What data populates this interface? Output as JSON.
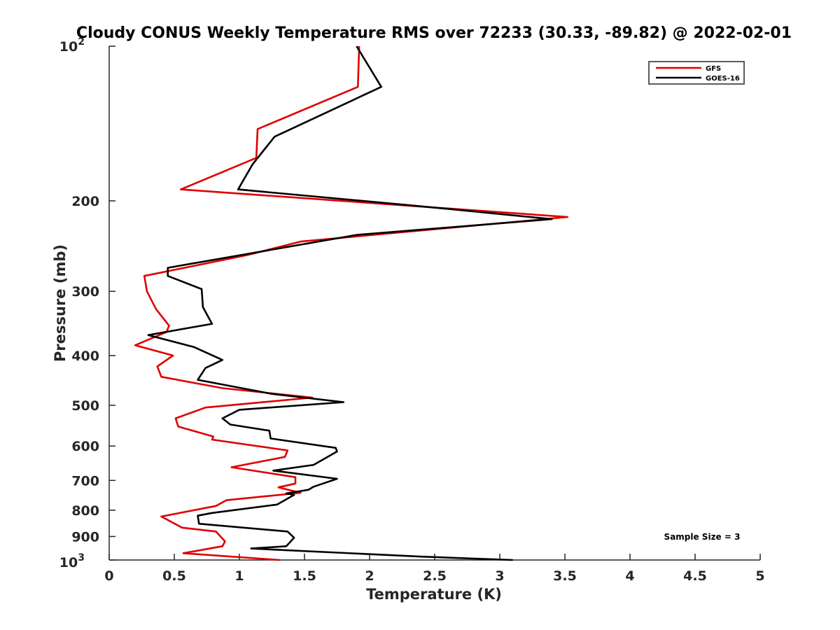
{
  "chart_data": {
    "type": "line",
    "title": "Cloudy CONUS Weekly Temperature RMS over 72233 (30.33, -89.82) @ 2022-02-01",
    "xlabel": "Temperature (K)",
    "ylabel": "Pressure (mb)",
    "xlim": [
      0,
      5
    ],
    "ylim": [
      1000,
      100
    ],
    "y_scale": "log",
    "y_reversed": true,
    "grid": false,
    "legend_position": "top-right",
    "x_ticks": [
      "0",
      "0.5",
      "1",
      "1.5",
      "2",
      "2.5",
      "3",
      "3.5",
      "4",
      "4.5",
      "5"
    ],
    "x_tick_values": [
      0,
      0.5,
      1,
      1.5,
      2,
      2.5,
      3,
      3.5,
      4,
      4.5,
      5
    ],
    "y_ticks": [
      {
        "value": 100,
        "base": "10",
        "exp": "2"
      },
      {
        "value": 200,
        "label": "200"
      },
      {
        "value": 300,
        "label": "300"
      },
      {
        "value": 400,
        "label": "400"
      },
      {
        "value": 500,
        "label": "500"
      },
      {
        "value": 600,
        "label": "600"
      },
      {
        "value": 700,
        "label": "700"
      },
      {
        "value": 800,
        "label": "800"
      },
      {
        "value": 900,
        "label": "900"
      },
      {
        "value": 1000,
        "base": "10",
        "exp": "3"
      }
    ],
    "annotation": "Sample Size = 3",
    "series": [
      {
        "name": "GFS",
        "color": "#e00000",
        "x": [
          1.92,
          1.91,
          1.14,
          1.13,
          0.55,
          3.52,
          1.47,
          1.06,
          0.27,
          0.29,
          0.36,
          0.46,
          0.44,
          0.2,
          0.49,
          0.37,
          0.4,
          0.87,
          1.56,
          0.74,
          0.51,
          0.53,
          0.8,
          0.79,
          1.37,
          1.35,
          0.94,
          1.43,
          1.43,
          1.3,
          1.47,
          0.9,
          0.82,
          0.4,
          0.56,
          0.82,
          0.89,
          0.87,
          0.57,
          1.31
        ],
        "y": [
          100,
          120,
          145,
          165,
          190,
          215,
          240,
          255,
          280,
          300,
          325,
          350,
          360,
          382,
          400,
          420,
          440,
          463,
          483,
          505,
          530,
          550,
          575,
          583,
          612,
          630,
          660,
          690,
          710,
          722,
          740,
          765,
          785,
          823,
          865,
          880,
          920,
          940,
          970,
          1000
        ]
      },
      {
        "name": "GOES-16",
        "color": "#000000",
        "x": [
          1.9,
          2.09,
          1.27,
          1.1,
          0.99,
          2.4,
          3.4,
          1.9,
          0.45,
          0.45,
          0.71,
          0.72,
          0.79,
          0.3,
          0.65,
          0.87,
          0.74,
          0.68,
          1.25,
          1.8,
          1.0,
          0.87,
          0.93,
          1.23,
          1.24,
          1.74,
          1.75,
          1.57,
          1.26,
          1.75,
          1.57,
          1.53,
          1.36,
          1.42,
          1.29,
          0.79,
          0.68,
          0.69,
          1.37,
          1.42,
          1.36,
          1.09,
          2.4,
          3.1
        ],
        "y": [
          100,
          120,
          150,
          170,
          190,
          205,
          217,
          233,
          270,
          280,
          297,
          322,
          347,
          365,
          385,
          408,
          423,
          446,
          475,
          493,
          510,
          530,
          545,
          560,
          580,
          605,
          615,
          653,
          670,
          695,
          720,
          730,
          742,
          747,
          780,
          810,
          820,
          850,
          880,
          905,
          940,
          950,
          985,
          1000
        ]
      }
    ]
  }
}
